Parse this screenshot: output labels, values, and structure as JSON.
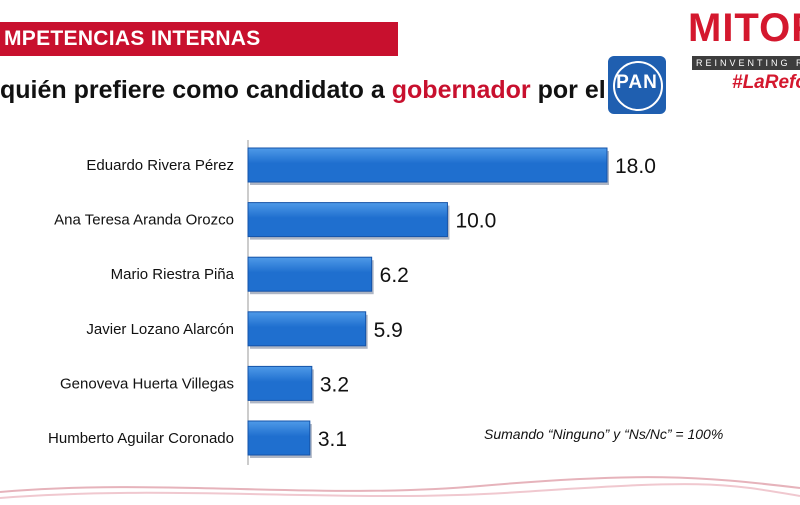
{
  "header": {
    "section_title": "MPETENCIAS INTERNAS",
    "question_before": "quién prefiere como candidato a ",
    "question_highlight": "gobernador",
    "question_after": " por el",
    "party_logo_text": "PAN"
  },
  "brand": {
    "name": "MITOF",
    "tagline": "REINVENTING R",
    "hashtag": "#LaRefo"
  },
  "note": "Sumando “Ninguno” y “Ns/Nc” = 100%",
  "colors": {
    "banner": "#c8102e",
    "bar": "#1f6fcf",
    "bar_highlight": "#4f9ae8",
    "highlight_text": "#c8102e"
  },
  "chart_data": {
    "type": "bar",
    "orientation": "horizontal",
    "categories": [
      "Eduardo Rivera Pérez",
      "Ana Teresa Aranda Orozco",
      "Mario Riestra Piña",
      "Javier Lozano Alarcón",
      "Genoveva Huerta Villegas",
      "Humberto Aguilar Coronado"
    ],
    "values": [
      18.0,
      10.0,
      6.2,
      5.9,
      3.2,
      3.1
    ],
    "value_labels": [
      "18.0",
      "10.0",
      "6.2",
      "5.9",
      "3.2",
      "3.1"
    ],
    "title": "",
    "xlabel": "",
    "ylabel": "",
    "grid": false,
    "legend": "none"
  }
}
